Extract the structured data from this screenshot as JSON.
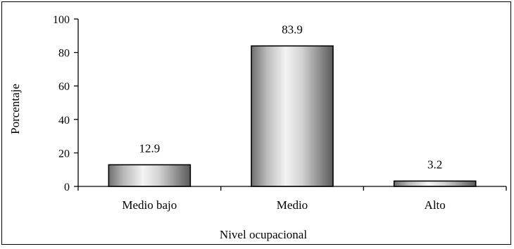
{
  "chart_data": {
    "type": "bar",
    "categories": [
      "Medio bajo",
      "Medio",
      "Alto"
    ],
    "values": [
      12.9,
      83.9,
      3.2
    ],
    "data_labels": [
      "12.9",
      "83.9",
      "3.2"
    ],
    "title": "",
    "xlabel": "Nivel ocupacional",
    "ylabel": "Porcentaje",
    "ylim": [
      0,
      100
    ],
    "yticks": [
      0,
      20,
      40,
      60,
      80,
      100
    ],
    "grid": false,
    "bar_style": "cylinder-gray-gradient"
  }
}
